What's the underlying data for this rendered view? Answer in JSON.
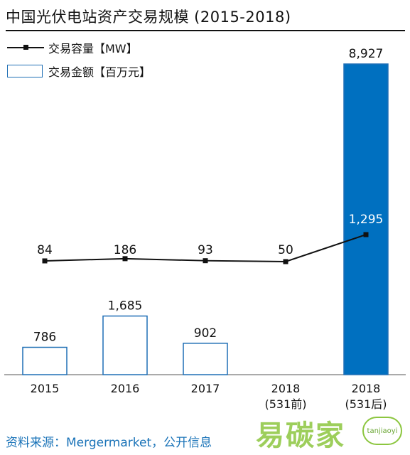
{
  "title": "中国光伏电站资产交易规模 (2015-2018)",
  "legend": {
    "line_label": "交易容量【MW】",
    "bar_label": "交易金额【百万元】"
  },
  "source": "资料来源：Mergermarket，公开信息",
  "watermark": {
    "text": "易碳家",
    "badge": "tanjiaoyi"
  },
  "chart_data": {
    "type": "bar",
    "categories": [
      "2015",
      "2016",
      "2017",
      "2018\n(531前)",
      "2018\n(531后)"
    ],
    "series": [
      {
        "name": "交易金额【百万元】",
        "type": "bar",
        "values": [
          786,
          1685,
          902,
          null,
          8927
        ],
        "labels": [
          "786",
          "1,685",
          "902",
          "",
          "8,927"
        ],
        "fill": [
          "#ffffff",
          "#ffffff",
          "#ffffff",
          "#ffffff",
          "#0070c0"
        ],
        "stroke": "#1f6fb5"
      },
      {
        "name": "交易容量【MW】",
        "type": "line",
        "values": [
          84,
          186,
          93,
          50,
          1295
        ],
        "labels": [
          "84",
          "186",
          "93",
          "50",
          "1,295"
        ],
        "color": "#111111"
      }
    ],
    "grid": false,
    "legend_position": "top-left"
  }
}
